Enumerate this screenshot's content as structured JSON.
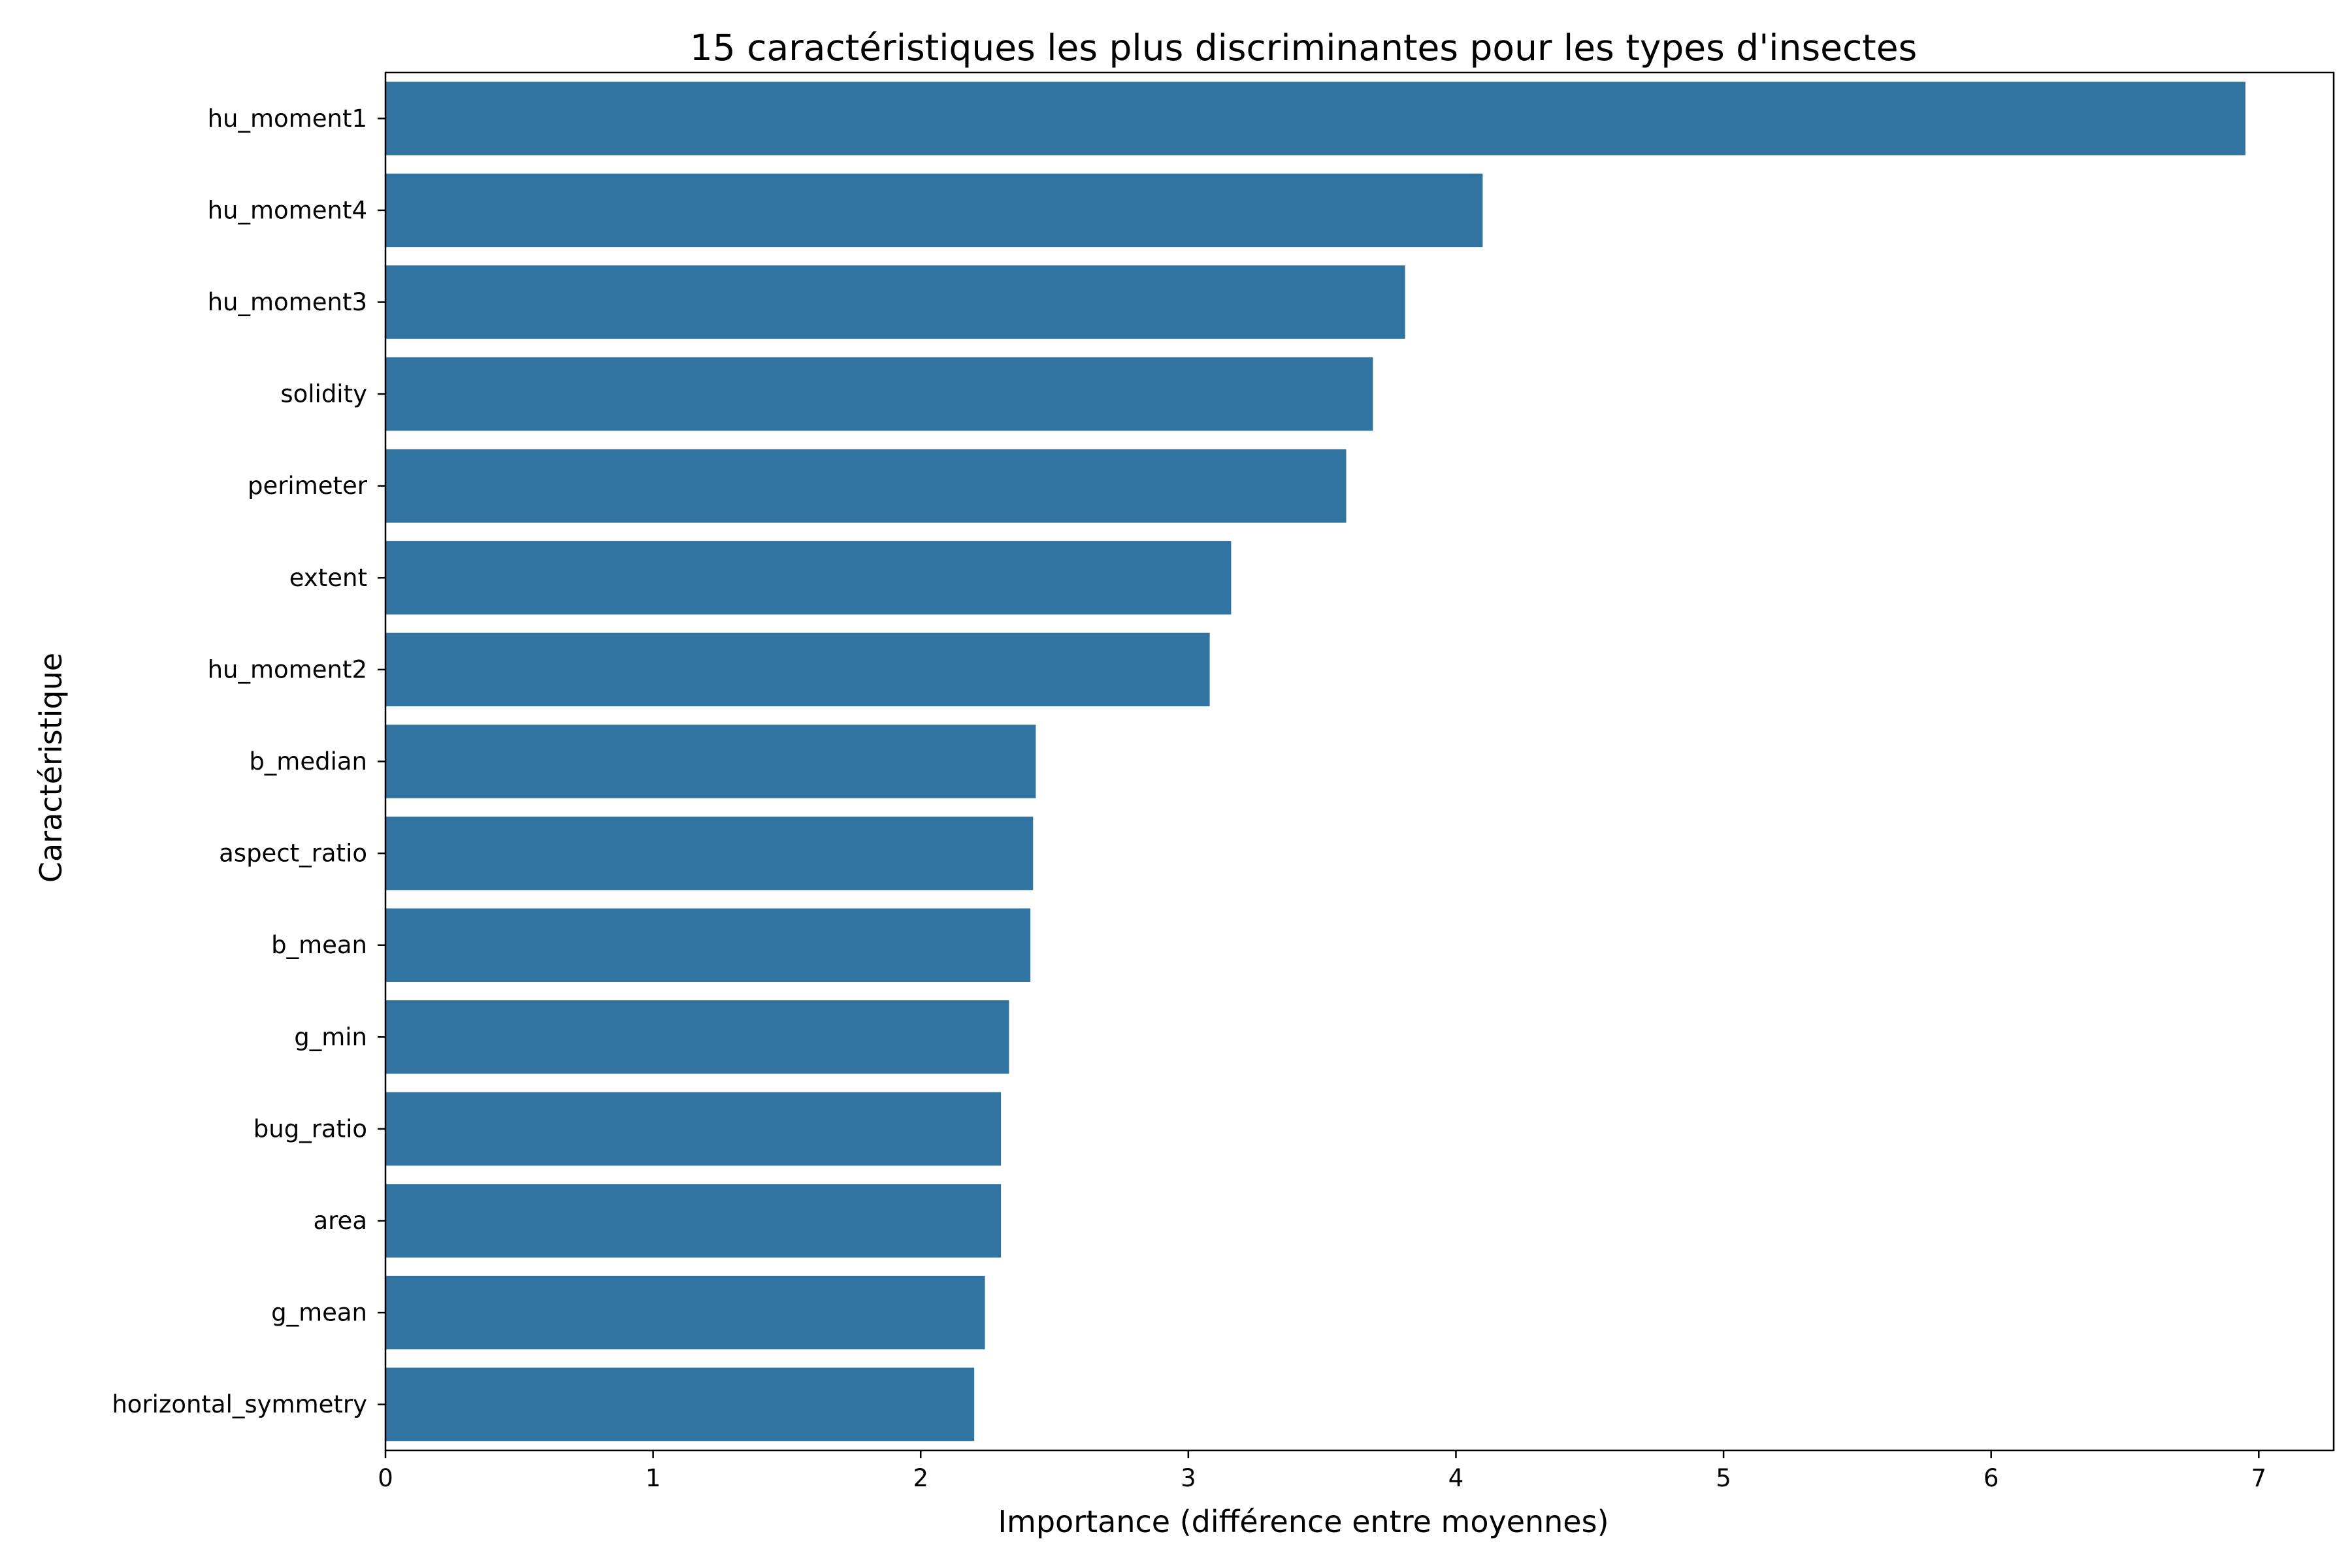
{
  "chart_data": {
    "type": "bar",
    "orientation": "horizontal",
    "title": "15 caractéristiques les plus discriminantes pour les types d'insectes",
    "xlabel": "Importance (différence entre moyennes)",
    "ylabel": "Caractéristique",
    "categories": [
      "hu_moment1",
      "hu_moment4",
      "hu_moment3",
      "solidity",
      "perimeter",
      "extent",
      "hu_moment2",
      "b_median",
      "aspect_ratio",
      "b_mean",
      "g_min",
      "bug_ratio",
      "area",
      "g_mean",
      "horizontal_symmetry"
    ],
    "values": [
      6.95,
      4.1,
      3.81,
      3.69,
      3.59,
      3.16,
      3.08,
      2.43,
      2.42,
      2.41,
      2.33,
      2.3,
      2.3,
      2.24,
      2.2
    ],
    "xlim": [
      0,
      7.28
    ],
    "xticks": [
      0,
      1,
      2,
      3,
      4,
      5,
      6,
      7
    ],
    "grid": false,
    "legend": "none",
    "bar_color": "#3274a1"
  }
}
